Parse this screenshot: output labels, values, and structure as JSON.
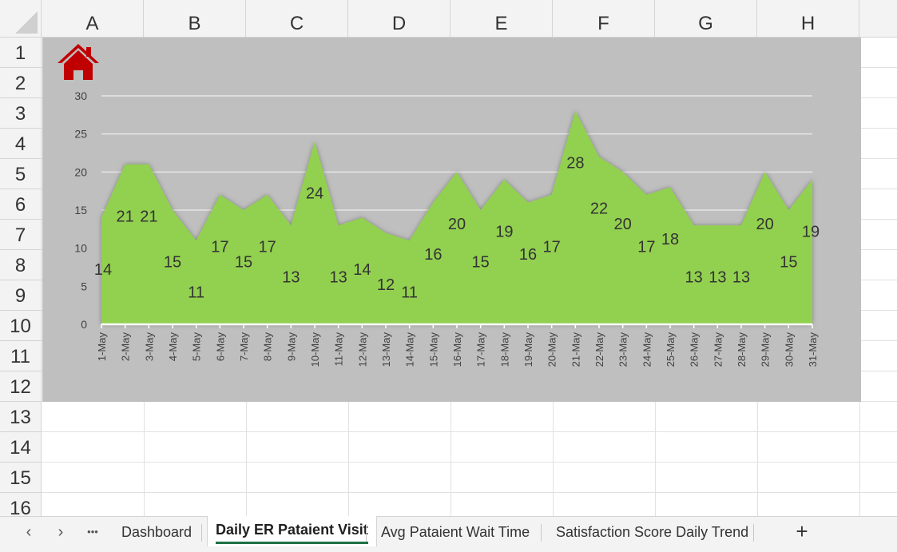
{
  "sheet": {
    "columns": [
      "A",
      "B",
      "C",
      "D",
      "E",
      "F",
      "G",
      "H"
    ],
    "rows": [
      "1",
      "2",
      "3",
      "4",
      "5",
      "6",
      "7",
      "8",
      "9",
      "10",
      "11",
      "12",
      "13",
      "14",
      "15",
      "16"
    ]
  },
  "home_icon": "home-icon",
  "colors": {
    "area_fill": "#92d050",
    "chart_bg": "#bfbfbf",
    "home_red": "#c00000",
    "active_tab_underline": "#1e7145"
  },
  "chart_data": {
    "type": "area",
    "categories": [
      "1-May",
      "2-May",
      "3-May",
      "4-May",
      "5-May",
      "6-May",
      "7-May",
      "8-May",
      "9-May",
      "10-May",
      "11-May",
      "12-May",
      "13-May",
      "14-May",
      "15-May",
      "16-May",
      "17-May",
      "18-May",
      "19-May",
      "20-May",
      "21-May",
      "22-May",
      "23-May",
      "24-May",
      "25-May",
      "26-May",
      "27-May",
      "28-May",
      "29-May",
      "30-May",
      "31-May"
    ],
    "values": [
      14,
      21,
      21,
      15,
      11,
      17,
      15,
      17,
      13,
      24,
      13,
      14,
      12,
      11,
      16,
      20,
      15,
      19,
      16,
      17,
      28,
      22,
      20,
      17,
      18,
      13,
      13,
      13,
      20,
      15,
      19
    ],
    "yticks": [
      "0",
      "5",
      "10",
      "15",
      "20",
      "25",
      "30"
    ],
    "ylim": [
      0,
      30
    ],
    "grid": true,
    "legend": "none",
    "title": ""
  },
  "tabs": {
    "prev_icon": "‹",
    "next_icon": "›",
    "more_icon": "•••",
    "items": [
      "Dashboard",
      "Daily ER Pataient Visit",
      "Avg Pataient Wait Time",
      "Satisfaction Score Daily Trend"
    ],
    "active": "Daily ER Pataient Visit",
    "add_icon": "+"
  }
}
